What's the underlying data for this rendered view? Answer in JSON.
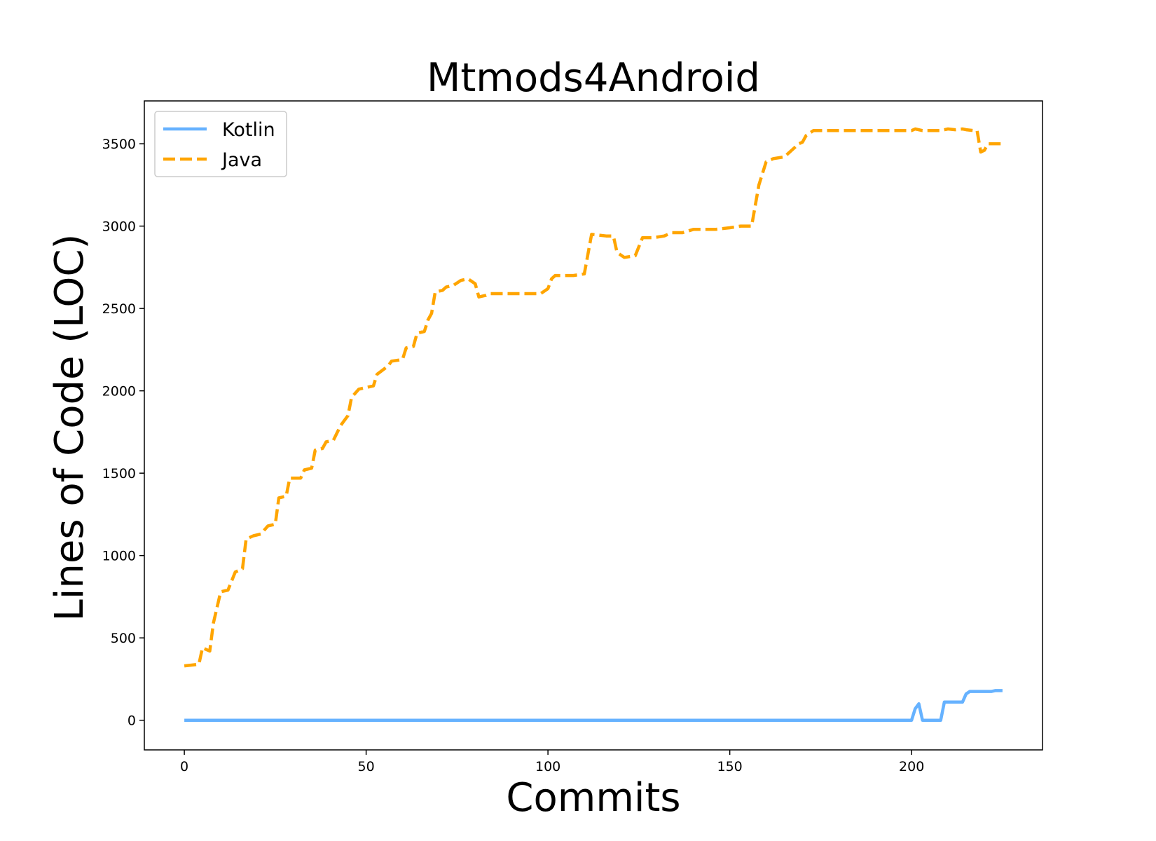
{
  "chart_data": {
    "type": "line",
    "title": "Mtmods4Android",
    "xlabel": "Commits",
    "ylabel": "Lines of Code (LOC)",
    "xlim": [
      -11,
      236
    ],
    "ylim": [
      -180,
      3760
    ],
    "xticks": [
      0,
      50,
      100,
      150,
      200
    ],
    "yticks": [
      0,
      500,
      1000,
      1500,
      2000,
      2500,
      3000,
      3500
    ],
    "legend_position": "upper left",
    "grid": false,
    "series": [
      {
        "name": "Kotlin",
        "color": "#66b2ff",
        "style": "solid",
        "points": [
          [
            0,
            0
          ],
          [
            200,
            0
          ],
          [
            201,
            70
          ],
          [
            202,
            100
          ],
          [
            203,
            0
          ],
          [
            208,
            0
          ],
          [
            209,
            110
          ],
          [
            212,
            110
          ],
          [
            214,
            110
          ],
          [
            215,
            160
          ],
          [
            216,
            175
          ],
          [
            222,
            175
          ],
          [
            223,
            180
          ],
          [
            225,
            180
          ]
        ]
      },
      {
        "name": "Java",
        "color": "#ffa500",
        "style": "dashed",
        "points": [
          [
            0,
            330
          ],
          [
            2,
            335
          ],
          [
            4,
            340
          ],
          [
            5,
            440
          ],
          [
            7,
            420
          ],
          [
            8,
            590
          ],
          [
            10,
            780
          ],
          [
            12,
            790
          ],
          [
            14,
            900
          ],
          [
            16,
            920
          ],
          [
            17,
            1100
          ],
          [
            19,
            1120
          ],
          [
            21,
            1130
          ],
          [
            23,
            1180
          ],
          [
            25,
            1190
          ],
          [
            26,
            1350
          ],
          [
            28,
            1360
          ],
          [
            29,
            1470
          ],
          [
            32,
            1470
          ],
          [
            33,
            1520
          ],
          [
            35,
            1530
          ],
          [
            36,
            1640
          ],
          [
            38,
            1650
          ],
          [
            39,
            1690
          ],
          [
            41,
            1700
          ],
          [
            43,
            1790
          ],
          [
            45,
            1850
          ],
          [
            46,
            1960
          ],
          [
            48,
            2010
          ],
          [
            50,
            2020
          ],
          [
            52,
            2030
          ],
          [
            53,
            2100
          ],
          [
            56,
            2150
          ],
          [
            57,
            2180
          ],
          [
            60,
            2190
          ],
          [
            61,
            2260
          ],
          [
            63,
            2270
          ],
          [
            64,
            2350
          ],
          [
            66,
            2360
          ],
          [
            67,
            2430
          ],
          [
            68,
            2470
          ],
          [
            69,
            2600
          ],
          [
            71,
            2610
          ],
          [
            72,
            2630
          ],
          [
            74,
            2640
          ],
          [
            76,
            2670
          ],
          [
            78,
            2680
          ],
          [
            80,
            2650
          ],
          [
            81,
            2570
          ],
          [
            83,
            2580
          ],
          [
            84,
            2590
          ],
          [
            88,
            2590
          ],
          [
            98,
            2590
          ],
          [
            100,
            2620
          ],
          [
            101,
            2680
          ],
          [
            102,
            2700
          ],
          [
            107,
            2700
          ],
          [
            110,
            2710
          ],
          [
            112,
            2950
          ],
          [
            116,
            2940
          ],
          [
            118,
            2940
          ],
          [
            119,
            2840
          ],
          [
            121,
            2810
          ],
          [
            124,
            2820
          ],
          [
            126,
            2930
          ],
          [
            129,
            2930
          ],
          [
            132,
            2940
          ],
          [
            134,
            2960
          ],
          [
            137,
            2960
          ],
          [
            140,
            2980
          ],
          [
            146,
            2980
          ],
          [
            150,
            2990
          ],
          [
            153,
            3000
          ],
          [
            156,
            3000
          ],
          [
            158,
            3250
          ],
          [
            160,
            3390
          ],
          [
            162,
            3410
          ],
          [
            165,
            3420
          ],
          [
            167,
            3460
          ],
          [
            169,
            3500
          ],
          [
            170,
            3510
          ],
          [
            171,
            3550
          ],
          [
            173,
            3580
          ],
          [
            200,
            3580
          ],
          [
            201,
            3590
          ],
          [
            203,
            3580
          ],
          [
            208,
            3580
          ],
          [
            210,
            3590
          ],
          [
            212,
            3585
          ],
          [
            214,
            3590
          ],
          [
            215,
            3585
          ],
          [
            217,
            3580
          ],
          [
            218,
            3580
          ],
          [
            219,
            3450
          ],
          [
            220,
            3460
          ],
          [
            221,
            3500
          ],
          [
            225,
            3500
          ]
        ]
      }
    ]
  }
}
